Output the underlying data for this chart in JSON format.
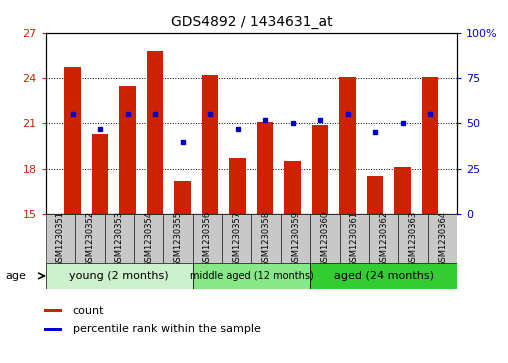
{
  "title": "GDS4892 / 1434631_at",
  "samples": [
    "GSM1230351",
    "GSM1230352",
    "GSM1230353",
    "GSM1230354",
    "GSM1230355",
    "GSM1230356",
    "GSM1230357",
    "GSM1230358",
    "GSM1230359",
    "GSM1230360",
    "GSM1230361",
    "GSM1230362",
    "GSM1230363",
    "GSM1230364"
  ],
  "bar_values": [
    24.7,
    20.3,
    23.5,
    25.8,
    17.2,
    24.2,
    18.7,
    21.1,
    18.5,
    20.9,
    24.1,
    17.5,
    18.1,
    24.1
  ],
  "percentile_values": [
    55,
    47,
    55,
    55,
    40,
    55,
    47,
    52,
    50,
    52,
    55,
    45,
    50,
    55
  ],
  "ylim_left": [
    15,
    27
  ],
  "ylim_right": [
    0,
    100
  ],
  "yticks_left": [
    15,
    18,
    21,
    24,
    27
  ],
  "yticks_right": [
    0,
    25,
    50,
    75,
    100
  ],
  "ytick_right_labels": [
    "0",
    "25",
    "50",
    "75",
    "100%"
  ],
  "bar_color": "#cc2200",
  "dot_color": "#0000cc",
  "group_labels": [
    "young (2 months)",
    "middle aged (12 months)",
    "aged (24 months)"
  ],
  "group_ranges": [
    [
      0,
      4
    ],
    [
      5,
      8
    ],
    [
      9,
      13
    ]
  ],
  "group_colors": [
    "#ccf0cc",
    "#88e888",
    "#33cc33"
  ],
  "tick_box_color": "#c8c8c8",
  "legend_count_label": "count",
  "legend_percentile_label": "percentile rank within the sample"
}
